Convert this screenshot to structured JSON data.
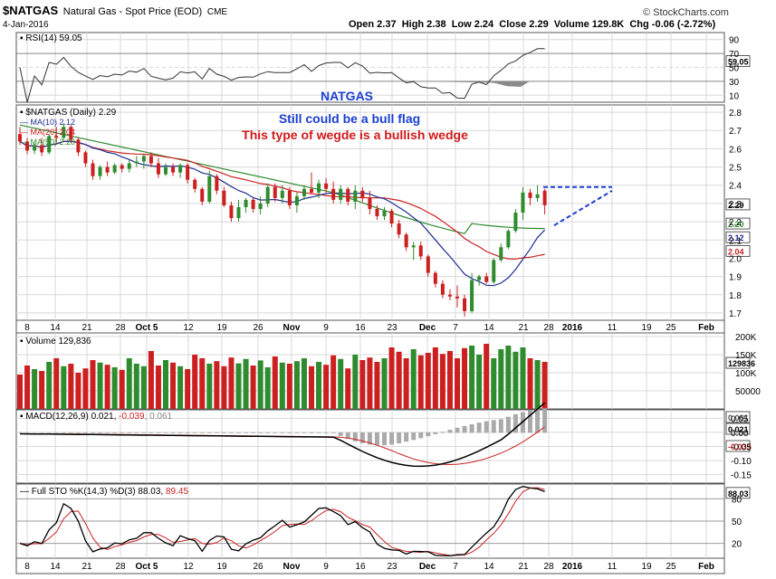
{
  "header": {
    "symbol": "$NATGAS",
    "description": "Natural Gas - Spot Price (EOD)",
    "exchange": "CME",
    "date": "4-Jan-2016",
    "ohlc": "Open 2.37  High 2.38  Low 2.24  Close 2.29  Volume 129.8K  Chg -0.06 (-2.72%)",
    "watermark": "© StockCharts.com"
  },
  "panels": {
    "rsi": {
      "label": "RSI(14) 59.05",
      "value": "59.05",
      "ticks": [
        90,
        70,
        50,
        30,
        10
      ]
    },
    "price": {
      "label": "$NATGAS (Daily) 2.29",
      "ma10": "MA(10) 2.12",
      "ma20": "MA(20) 2.04",
      "ma50": "MA(50) 2.20",
      "tag_close": "2.29",
      "tag_ma50": "2.20",
      "tag_ma10": "2.12",
      "tag_ma20": "2.04",
      "ticks": [
        "2.8",
        "2.7",
        "2.6",
        "2.5",
        "2.4",
        "2.3",
        "2.2",
        "2.1",
        "2.0",
        "1.9",
        "1.8",
        "1.7"
      ]
    },
    "volume": {
      "label": "Volume 129,836",
      "value": "129836",
      "ticks": [
        "200K",
        "150K",
        "100K",
        "50000"
      ]
    },
    "macd": {
      "label_a": "MACD(12,26,9) 0.021, ",
      "label_b": "-0.039",
      "label_c": ", 0.061",
      "tag1": "0.061",
      "tag2": "0.021",
      "tag3": "-0.039",
      "ticks": [
        "0.05",
        "0.00",
        "-0.05",
        "-0.10",
        "-0.15"
      ]
    },
    "sto": {
      "label_a": "Full STO %K(14,3) %D(3) 88.03, ",
      "label_b": "89.45",
      "tag": "88.03",
      "ticks": [
        "80",
        "50",
        "20"
      ]
    }
  },
  "x_axis_labels": [
    "8",
    "14",
    "21",
    "28",
    "Oct 5",
    "12",
    "19",
    "26",
    "Nov",
    "9",
    "16",
    "23",
    "Dec",
    "7",
    "14",
    "21",
    "28",
    "2016",
    "11",
    "19",
    "25",
    "Feb"
  ],
  "annotations": {
    "title": "NATGAS",
    "line1": "Still could be a bull flag",
    "line2": "This type of wegde is a bullish wedge"
  },
  "colors": {
    "up": "#2e8b2e",
    "down": "#cc1f1f",
    "ma10": "#1f2f8f",
    "ma20": "#cc2222",
    "ma50": "#2e8b2e",
    "annot_blue": "#1a3fd0",
    "annot_red": "#d01a1a"
  },
  "chart_data": {
    "type": "candlestick",
    "x_start": "2015-09-08",
    "x_end": "2016-01-04",
    "price_ylim": [
      1.66,
      2.84
    ],
    "bars": [
      {
        "o": 2.68,
        "h": 2.72,
        "l": 2.62,
        "c": 2.64
      },
      {
        "o": 2.64,
        "h": 2.66,
        "l": 2.57,
        "c": 2.59
      },
      {
        "o": 2.59,
        "h": 2.63,
        "l": 2.57,
        "c": 2.62
      },
      {
        "o": 2.62,
        "h": 2.66,
        "l": 2.56,
        "c": 2.58
      },
      {
        "o": 2.58,
        "h": 2.68,
        "l": 2.57,
        "c": 2.67
      },
      {
        "o": 2.67,
        "h": 2.72,
        "l": 2.63,
        "c": 2.66
      },
      {
        "o": 2.66,
        "h": 2.74,
        "l": 2.65,
        "c": 2.72
      },
      {
        "o": 2.72,
        "h": 2.73,
        "l": 2.63,
        "c": 2.65
      },
      {
        "o": 2.65,
        "h": 2.66,
        "l": 2.56,
        "c": 2.58
      },
      {
        "o": 2.58,
        "h": 2.59,
        "l": 2.5,
        "c": 2.52
      },
      {
        "o": 2.52,
        "h": 2.54,
        "l": 2.43,
        "c": 2.45
      },
      {
        "o": 2.45,
        "h": 2.51,
        "l": 2.43,
        "c": 2.5
      },
      {
        "o": 2.5,
        "h": 2.53,
        "l": 2.45,
        "c": 2.47
      },
      {
        "o": 2.47,
        "h": 2.52,
        "l": 2.46,
        "c": 2.51
      },
      {
        "o": 2.51,
        "h": 2.52,
        "l": 2.47,
        "c": 2.49
      },
      {
        "o": 2.49,
        "h": 2.54,
        "l": 2.47,
        "c": 2.52
      },
      {
        "o": 2.52,
        "h": 2.56,
        "l": 2.5,
        "c": 2.53
      },
      {
        "o": 2.53,
        "h": 2.57,
        "l": 2.49,
        "c": 2.56
      },
      {
        "o": 2.56,
        "h": 2.58,
        "l": 2.5,
        "c": 2.52
      },
      {
        "o": 2.52,
        "h": 2.55,
        "l": 2.44,
        "c": 2.46
      },
      {
        "o": 2.46,
        "h": 2.52,
        "l": 2.45,
        "c": 2.5
      },
      {
        "o": 2.5,
        "h": 2.52,
        "l": 2.45,
        "c": 2.47
      },
      {
        "o": 2.47,
        "h": 2.52,
        "l": 2.44,
        "c": 2.51
      },
      {
        "o": 2.51,
        "h": 2.52,
        "l": 2.41,
        "c": 2.43
      },
      {
        "o": 2.43,
        "h": 2.44,
        "l": 2.36,
        "c": 2.38
      },
      {
        "o": 2.38,
        "h": 2.39,
        "l": 2.29,
        "c": 2.31
      },
      {
        "o": 2.31,
        "h": 2.48,
        "l": 2.3,
        "c": 2.45
      },
      {
        "o": 2.45,
        "h": 2.46,
        "l": 2.35,
        "c": 2.37
      },
      {
        "o": 2.37,
        "h": 2.39,
        "l": 2.28,
        "c": 2.29
      },
      {
        "o": 2.29,
        "h": 2.31,
        "l": 2.2,
        "c": 2.22
      },
      {
        "o": 2.22,
        "h": 2.32,
        "l": 2.2,
        "c": 2.28
      },
      {
        "o": 2.28,
        "h": 2.33,
        "l": 2.25,
        "c": 2.32
      },
      {
        "o": 2.32,
        "h": 2.33,
        "l": 2.25,
        "c": 2.27
      },
      {
        "o": 2.27,
        "h": 2.34,
        "l": 2.24,
        "c": 2.3
      },
      {
        "o": 2.3,
        "h": 2.41,
        "l": 2.28,
        "c": 2.39
      },
      {
        "o": 2.39,
        "h": 2.41,
        "l": 2.31,
        "c": 2.33
      },
      {
        "o": 2.33,
        "h": 2.4,
        "l": 2.3,
        "c": 2.37
      },
      {
        "o": 2.37,
        "h": 2.39,
        "l": 2.27,
        "c": 2.29
      },
      {
        "o": 2.29,
        "h": 2.36,
        "l": 2.25,
        "c": 2.34
      },
      {
        "o": 2.34,
        "h": 2.4,
        "l": 2.32,
        "c": 2.38
      },
      {
        "o": 2.38,
        "h": 2.47,
        "l": 2.35,
        "c": 2.36
      },
      {
        "o": 2.36,
        "h": 2.43,
        "l": 2.33,
        "c": 2.41
      },
      {
        "o": 2.41,
        "h": 2.44,
        "l": 2.36,
        "c": 2.38
      },
      {
        "o": 2.38,
        "h": 2.42,
        "l": 2.3,
        "c": 2.32
      },
      {
        "o": 2.32,
        "h": 2.4,
        "l": 2.3,
        "c": 2.38
      },
      {
        "o": 2.38,
        "h": 2.39,
        "l": 2.29,
        "c": 2.31
      },
      {
        "o": 2.31,
        "h": 2.4,
        "l": 2.27,
        "c": 2.37
      },
      {
        "o": 2.37,
        "h": 2.39,
        "l": 2.31,
        "c": 2.33
      },
      {
        "o": 2.33,
        "h": 2.37,
        "l": 2.24,
        "c": 2.27
      },
      {
        "o": 2.27,
        "h": 2.29,
        "l": 2.21,
        "c": 2.23
      },
      {
        "o": 2.23,
        "h": 2.28,
        "l": 2.21,
        "c": 2.26
      },
      {
        "o": 2.26,
        "h": 2.27,
        "l": 2.17,
        "c": 2.19
      },
      {
        "o": 2.19,
        "h": 2.21,
        "l": 2.11,
        "c": 2.13
      },
      {
        "o": 2.13,
        "h": 2.14,
        "l": 2.04,
        "c": 2.06
      },
      {
        "o": 2.06,
        "h": 2.09,
        "l": 1.99,
        "c": 2.07
      },
      {
        "o": 2.07,
        "h": 2.09,
        "l": 1.99,
        "c": 2.01
      },
      {
        "o": 2.01,
        "h": 2.02,
        "l": 1.9,
        "c": 1.92
      },
      {
        "o": 1.92,
        "h": 1.93,
        "l": 1.84,
        "c": 1.86
      },
      {
        "o": 1.86,
        "h": 1.88,
        "l": 1.78,
        "c": 1.8
      },
      {
        "o": 1.8,
        "h": 1.83,
        "l": 1.77,
        "c": 1.79
      },
      {
        "o": 1.79,
        "h": 1.85,
        "l": 1.73,
        "c": 1.78
      },
      {
        "o": 1.78,
        "h": 1.8,
        "l": 1.68,
        "c": 1.71
      },
      {
        "o": 1.71,
        "h": 1.92,
        "l": 1.7,
        "c": 1.88
      },
      {
        "o": 1.88,
        "h": 1.91,
        "l": 1.85,
        "c": 1.9
      },
      {
        "o": 1.9,
        "h": 1.92,
        "l": 1.86,
        "c": 1.87
      },
      {
        "o": 1.87,
        "h": 2.0,
        "l": 1.86,
        "c": 1.99
      },
      {
        "o": 1.99,
        "h": 2.08,
        "l": 1.98,
        "c": 2.06
      },
      {
        "o": 2.06,
        "h": 2.16,
        "l": 2.05,
        "c": 2.15
      },
      {
        "o": 2.15,
        "h": 2.27,
        "l": 2.14,
        "c": 2.25
      },
      {
        "o": 2.25,
        "h": 2.39,
        "l": 2.21,
        "c": 2.36
      },
      {
        "o": 2.36,
        "h": 2.38,
        "l": 2.29,
        "c": 2.33
      },
      {
        "o": 2.33,
        "h": 2.4,
        "l": 2.31,
        "c": 2.35
      },
      {
        "o": 2.37,
        "h": 2.38,
        "l": 2.24,
        "c": 2.29
      }
    ],
    "volume_ylim": [
      0,
      210000
    ],
    "rsi_ylim": [
      0,
      100
    ],
    "macd_ylim": [
      -0.18,
      0.08
    ],
    "sto_ylim": [
      0,
      100
    ]
  }
}
